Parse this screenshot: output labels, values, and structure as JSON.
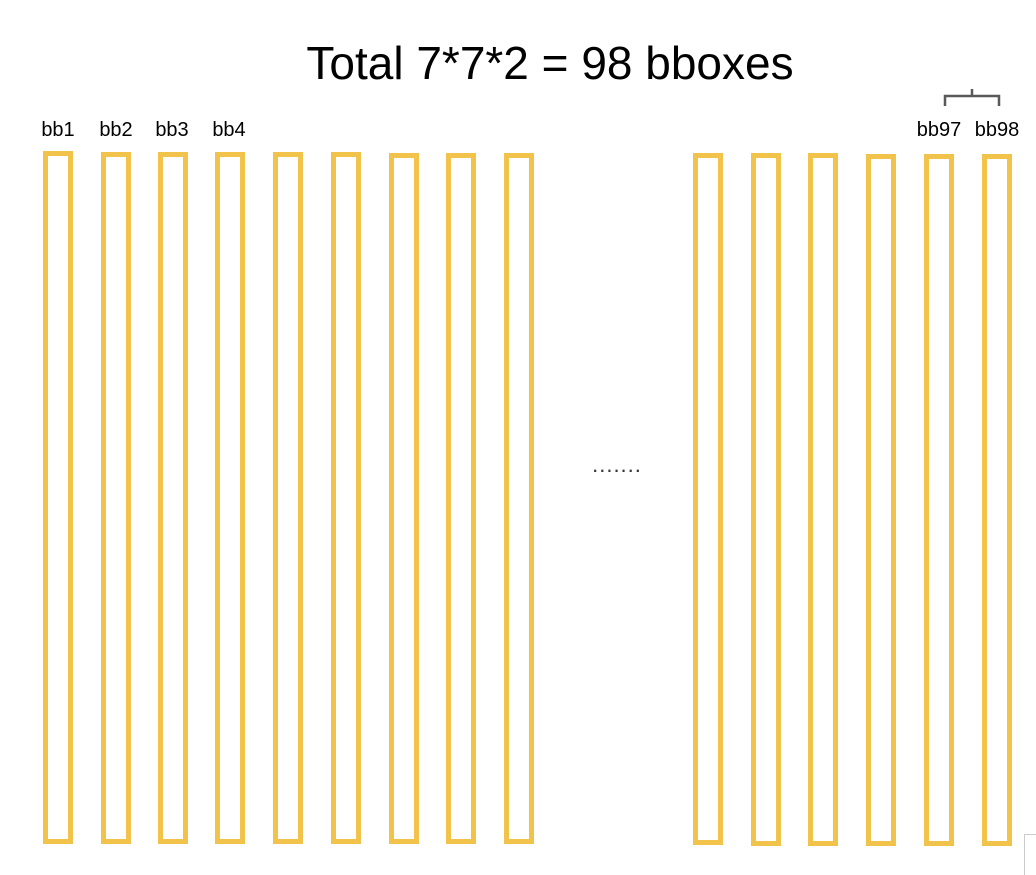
{
  "title": "Total 7*7*2 = 98 bboxes",
  "ellipsis": ".......",
  "box_color": "#F2C34A",
  "labels": [
    "bb1",
    "bb2",
    "bb3",
    "bb4",
    "bb97",
    "bb98"
  ],
  "boxes_left_group": 9,
  "boxes_right_group": 6
}
